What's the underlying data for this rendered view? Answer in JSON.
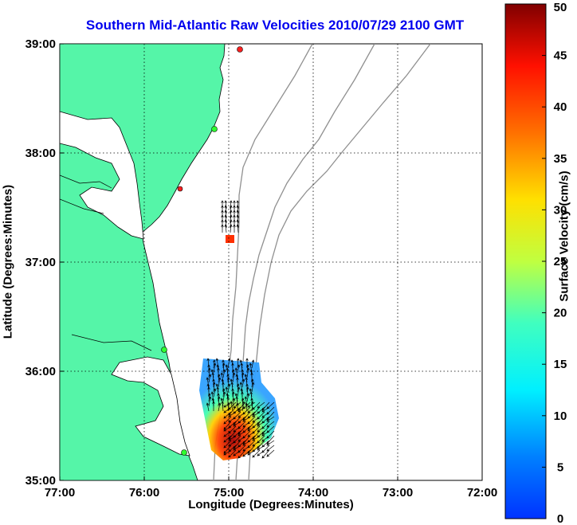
{
  "title": "Southern Mid-Atlantic Raw Velocities 2010/07/29 2100 GMT",
  "xlabel": "Longitude (Degrees:Minutes)",
  "ylabel": "Latitude (Degrees:Minutes)",
  "colorbar_label": "Surface Velocity (cm/s)",
  "chart_data": {
    "type": "map",
    "x_ticks": [
      "77:00",
      "76:00",
      "75:00",
      "74:00",
      "73:00",
      "72:00"
    ],
    "y_ticks": [
      "39:00",
      "38:00",
      "37:00",
      "36:00",
      "35:00"
    ],
    "xlim": [
      -77,
      -72
    ],
    "ylim": [
      35,
      39
    ],
    "grid": "dotted",
    "colorbar": {
      "min": 0,
      "max": 50,
      "ticks": [
        0,
        5,
        10,
        15,
        20,
        25,
        30,
        35,
        40,
        45,
        50
      ],
      "colormap": "jet"
    },
    "colors": {
      "land": "#55f5a8",
      "bathymetry": "#909090",
      "title": "#0000ee"
    }
  }
}
